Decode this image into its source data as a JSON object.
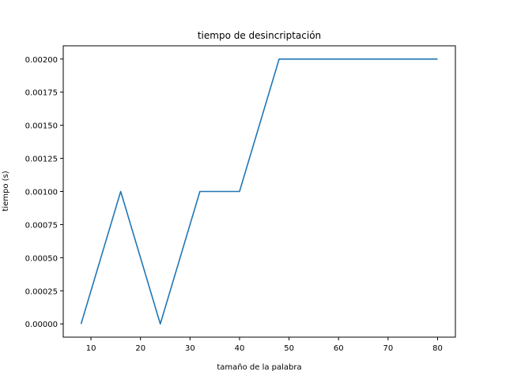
{
  "chart_data": {
    "type": "line",
    "title": "tiempo de desincriptación",
    "xlabel": "tamaño de la palabra",
    "ylabel": "tiempo (s)",
    "xlim": [
      4.4,
      83.6
    ],
    "ylim": [
      -0.0001,
      0.0021
    ],
    "grid": false,
    "x_ticks": [
      10,
      20,
      30,
      40,
      50,
      60,
      70,
      80
    ],
    "x_tick_labels": [
      "10",
      "20",
      "30",
      "40",
      "50",
      "60",
      "70",
      "80"
    ],
    "y_ticks": [
      0,
      0.00025,
      0.0005,
      0.00075,
      0.001,
      0.00125,
      0.0015,
      0.00175,
      0.002
    ],
    "y_tick_labels": [
      "0.00000",
      "0.00025",
      "0.00050",
      "0.00075",
      "0.00100",
      "0.00125",
      "0.00150",
      "0.00175",
      "0.00200"
    ],
    "series": [
      {
        "color": "#1f77b4",
        "x": [
          8,
          16,
          24,
          32,
          40,
          48,
          56,
          64,
          72,
          80
        ],
        "y": [
          0.0,
          0.001,
          0.0,
          0.001,
          0.001,
          0.002,
          0.002,
          0.002,
          0.002,
          0.002
        ]
      }
    ]
  }
}
